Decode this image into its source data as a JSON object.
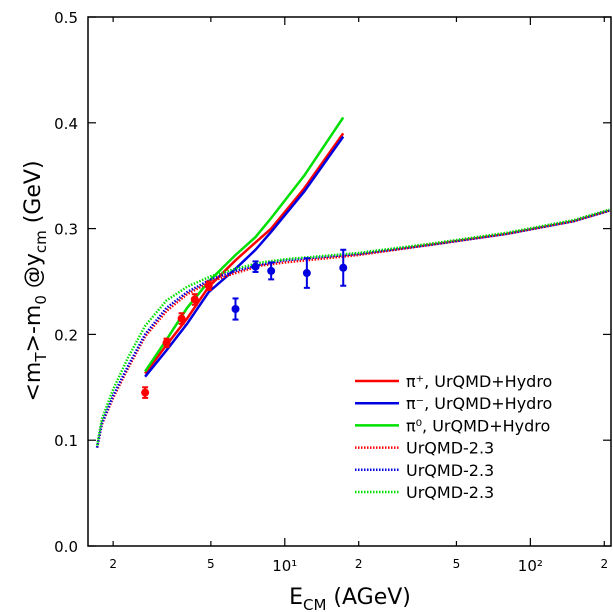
{
  "chart_data": {
    "type": "line",
    "x_label_parts": [
      "E",
      "CM",
      " (AGeV)"
    ],
    "y_label_parts": [
      "<m",
      "T",
      ">-m",
      "0",
      " @y",
      "cm",
      " (GeV)"
    ],
    "xscale": "log",
    "xlim": [
      1.58,
      213
    ],
    "ylim": [
      0,
      0.5
    ],
    "xticks": [
      {
        "value": 2,
        "label": "2"
      },
      {
        "value": 5,
        "label": "5"
      },
      {
        "value": 10,
        "label": "10¹"
      },
      {
        "value": 20,
        "label": "2"
      },
      {
        "value": 50,
        "label": "5"
      },
      {
        "value": 100,
        "label": "10²"
      },
      {
        "value": 200,
        "label": "2"
      }
    ],
    "yticks": [
      {
        "value": 0,
        "label": "0.0"
      },
      0.1,
      0.2,
      0.3,
      0.4,
      0.5
    ],
    "legend": "lower right",
    "series": [
      {
        "name": "π⁺, UrQMD+Hydro",
        "color": "#ff0000",
        "style": "solid",
        "x": [
          2.7,
          3.3,
          4,
          4.9,
          6.3,
          7.6,
          8.8,
          12,
          17.3
        ],
        "values": [
          0.163,
          0.19,
          0.215,
          0.245,
          0.27,
          0.287,
          0.3,
          0.338,
          0.39
        ]
      },
      {
        "name": "π⁻, UrQMD+Hydro",
        "color": "#0000e0",
        "style": "solid",
        "x": [
          2.7,
          3.3,
          4,
          4.9,
          6.3,
          7.6,
          8.8,
          12,
          17.3
        ],
        "values": [
          0.16,
          0.185,
          0.21,
          0.24,
          0.262,
          0.28,
          0.297,
          0.335,
          0.387
        ]
      },
      {
        "name": "π⁰, UrQMD+Hydro",
        "color": "#00e000",
        "style": "solid",
        "x": [
          2.7,
          3.3,
          4,
          4.9,
          6.3,
          7.6,
          8.8,
          12,
          17.3
        ],
        "values": [
          0.165,
          0.195,
          0.225,
          0.25,
          0.275,
          0.292,
          0.31,
          0.35,
          0.405
        ]
      },
      {
        "name": "UrQMD-2.3",
        "color": "#ff0000",
        "style": "dotted",
        "x": [
          1.72,
          1.8,
          2,
          2.3,
          2.7,
          3.3,
          4,
          5,
          6.3,
          8,
          10,
          20,
          40,
          80,
          150,
          210
        ],
        "values": [
          0.093,
          0.115,
          0.14,
          0.168,
          0.198,
          0.222,
          0.238,
          0.25,
          0.258,
          0.265,
          0.268,
          0.275,
          0.285,
          0.295,
          0.307,
          0.317
        ]
      },
      {
        "name": "UrQMD-2.3",
        "color": "#0000e0",
        "style": "dotted",
        "x": [
          1.72,
          1.8,
          2,
          2.3,
          2.7,
          3.3,
          4,
          5,
          6.3,
          8,
          10,
          20,
          40,
          80,
          150,
          210
        ],
        "values": [
          0.093,
          0.116,
          0.142,
          0.17,
          0.2,
          0.225,
          0.24,
          0.252,
          0.26,
          0.266,
          0.27,
          0.276,
          0.285,
          0.295,
          0.307,
          0.317
        ]
      },
      {
        "name": "UrQMD-2.3",
        "color": "#00e000",
        "style": "dotted",
        "x": [
          1.72,
          1.8,
          2,
          2.3,
          2.7,
          3.3,
          4,
          5,
          6.3,
          8,
          10,
          20,
          40,
          80,
          150,
          210
        ],
        "values": [
          0.095,
          0.12,
          0.148,
          0.178,
          0.208,
          0.232,
          0.245,
          0.255,
          0.262,
          0.268,
          0.271,
          0.277,
          0.286,
          0.296,
          0.308,
          0.318
        ]
      }
    ],
    "points": [
      {
        "color": "#ff0000",
        "x": [
          2.7,
          3.3,
          3.8,
          4.3,
          4.9
        ],
        "values": [
          0.145,
          0.192,
          0.215,
          0.233,
          0.246
        ],
        "errors": [
          0.005,
          0.004,
          0.005,
          0.005,
          0.004
        ]
      },
      {
        "color": "#0000e0",
        "x": [
          6.3,
          7.6,
          8.8,
          12.3,
          17.3
        ],
        "values": [
          0.224,
          0.264,
          0.26,
          0.258,
          0.263
        ],
        "errors": [
          0.01,
          0.005,
          0.008,
          0.014,
          0.017
        ]
      }
    ]
  }
}
